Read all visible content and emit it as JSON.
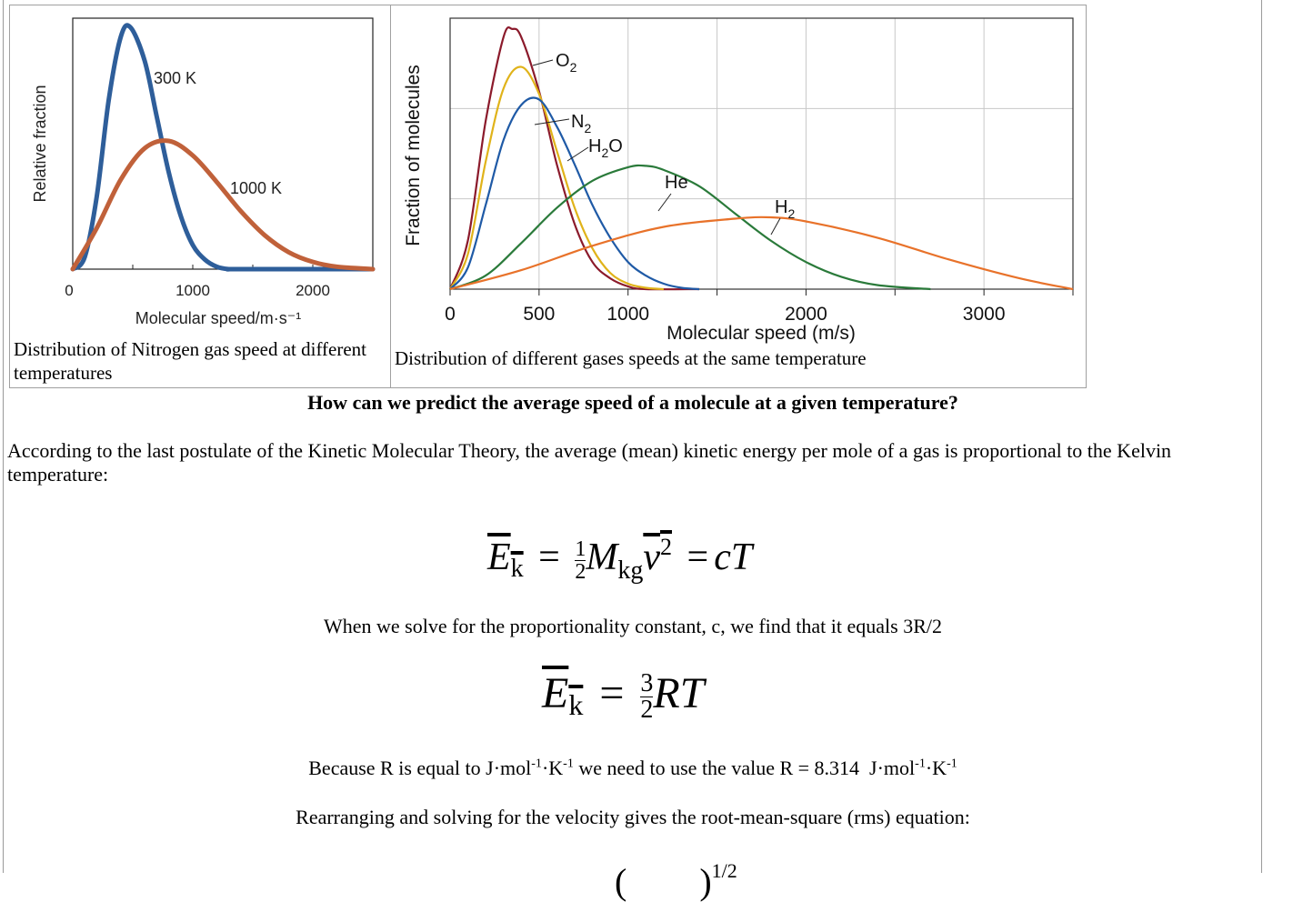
{
  "chart_data": [
    {
      "type": "line",
      "title": "",
      "xlabel": "Molecular speed/m·s⁻¹",
      "ylabel": "Relative fraction",
      "xlim": [
        0,
        2500
      ],
      "x_ticks": [
        "0",
        "1000",
        "2000"
      ],
      "series": [
        {
          "name": "300 K",
          "color": "#2e5e9a",
          "x": [
            0,
            100,
            200,
            300,
            400,
            480,
            600,
            700,
            800,
            900,
            1000,
            1100,
            1200,
            1300,
            1400,
            2500
          ],
          "y": [
            0,
            0.05,
            0.3,
            0.7,
            0.96,
            1.0,
            0.86,
            0.63,
            0.4,
            0.22,
            0.1,
            0.04,
            0.01,
            0.0,
            0.0,
            0.0
          ]
        },
        {
          "name": "1000 K",
          "color": "#c0613a",
          "x": [
            0,
            200,
            400,
            600,
            800,
            1000,
            1200,
            1400,
            1600,
            1800,
            2000,
            2200,
            2500
          ],
          "y": [
            0,
            0.17,
            0.37,
            0.5,
            0.53,
            0.47,
            0.36,
            0.24,
            0.14,
            0.07,
            0.03,
            0.01,
            0.0
          ]
        }
      ],
      "series_labels": [
        "300 K",
        "1000 K"
      ]
    },
    {
      "type": "line",
      "title": "",
      "xlabel": "Molecular speed (m/s)",
      "ylabel": "Fraction of molecules",
      "xlim": [
        0,
        3500
      ],
      "x_ticks": [
        "0",
        "500",
        "1000",
        "2000",
        "3000"
      ],
      "series": [
        {
          "name": "O2",
          "label_main": "O",
          "label_sub": "2",
          "color": "#8b1a2b",
          "x": [
            0,
            100,
            200,
            300,
            350,
            400,
            500,
            600,
            700,
            800,
            900,
            1000,
            1100,
            1400
          ],
          "y": [
            0,
            0.18,
            0.62,
            0.93,
            0.96,
            0.93,
            0.73,
            0.46,
            0.24,
            0.1,
            0.04,
            0.01,
            0.0,
            0.0
          ]
        },
        {
          "name": "N2",
          "label_main": "N",
          "label_sub": "2",
          "color": "#e0b31a",
          "x": [
            0,
            100,
            200,
            300,
            400,
            500,
            600,
            700,
            800,
            900,
            1000,
            1100,
            1200
          ],
          "y": [
            0,
            0.13,
            0.47,
            0.74,
            0.82,
            0.72,
            0.51,
            0.3,
            0.15,
            0.06,
            0.02,
            0.005,
            0.0
          ]
        },
        {
          "name": "H2O",
          "label_main": "H",
          "label_sub": "2",
          "label_tail": "O",
          "color": "#1f5aa6",
          "x": [
            0,
            100,
            200,
            300,
            400,
            500,
            600,
            700,
            800,
            900,
            1000,
            1100,
            1200,
            1300,
            1400
          ],
          "y": [
            0,
            0.08,
            0.31,
            0.55,
            0.68,
            0.7,
            0.6,
            0.46,
            0.31,
            0.19,
            0.1,
            0.05,
            0.02,
            0.005,
            0.0
          ]
        },
        {
          "name": "He",
          "label_main": "He",
          "color": "#2a7a3a",
          "x": [
            0,
            200,
            400,
            600,
            800,
            1000,
            1100,
            1200,
            1400,
            1600,
            1800,
            2000,
            2200,
            2400,
            2700
          ],
          "y": [
            0,
            0.05,
            0.17,
            0.3,
            0.4,
            0.45,
            0.455,
            0.44,
            0.38,
            0.28,
            0.18,
            0.1,
            0.045,
            0.015,
            0.0
          ]
        },
        {
          "name": "H2",
          "label_main": "H",
          "label_sub": "2",
          "color": "#e8722a",
          "x": [
            0,
            400,
            800,
            1200,
            1600,
            1800,
            2000,
            2400,
            2800,
            3200,
            3500
          ],
          "y": [
            0,
            0.07,
            0.16,
            0.23,
            0.26,
            0.265,
            0.25,
            0.19,
            0.11,
            0.04,
            0.0
          ]
        }
      ]
    }
  ],
  "captions": {
    "left": "Distribution of Nitrogen gas speed at different temperatures",
    "right": "Distribution of different gases speeds at the same temperature"
  },
  "question": "How can we predict the average speed of a molecule at a given temperature?",
  "paragraph": "According to the last postulate of the Kinetic Molecular Theory, the average (mean) kinetic energy per mole of a gas is proportional to the Kelvin temperature:",
  "equation1": {
    "lhs": "E",
    "lhs_sub": "k",
    "eq": "=",
    "half_num": "1",
    "half_den": "2",
    "mass": "M",
    "mass_sub": "kg",
    "v": "v",
    "v_sup": "2",
    "rhs": "cT"
  },
  "text_solve": "When we solve for the proportionality constant, c, we find that it equals 3R/2",
  "equation2": {
    "lhs": "E",
    "lhs_sub": "k",
    "eq": "=",
    "num": "3",
    "den": "2",
    "rhs": "RT"
  },
  "text_r": {
    "part1": "Because R is equal to J·mol",
    "sup1": "-1",
    "part2": "·K",
    "sup2": "-1",
    "part3": " we need to use the value R = 8.314  J·mol",
    "sup3": "-1",
    "part4": "·K",
    "sup4": "-1"
  },
  "text_rearrange": "Rearranging and solving for the velocity gives the root-mean-square (rms) equation:",
  "equation3_partial": {
    "exponent": "1/2"
  }
}
